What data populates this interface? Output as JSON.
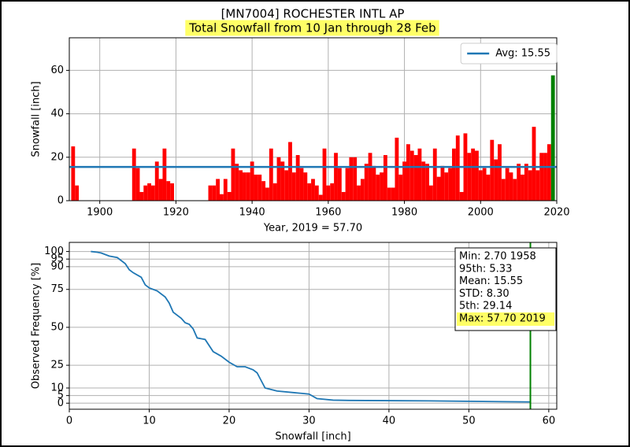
{
  "chart_data": [
    {
      "type": "bar",
      "title": "[MN7004] ROCHESTER INTL AP",
      "subtitle": "Total Snowfall from 10 Jan through 28 Feb",
      "subtitle_background": "#ffff66",
      "xlabel": "Year, 2019 = 57.70",
      "ylabel": "Snowfall [inch]",
      "xlim": [
        1892,
        2020
      ],
      "ylim": [
        0,
        75
      ],
      "xticks": [
        1900,
        1920,
        1940,
        1960,
        1980,
        2000,
        2020
      ],
      "yticks": [
        0,
        20,
        40,
        60
      ],
      "grid": true,
      "legend": "upper right",
      "series": [
        {
          "color": "red",
          "x": [
            1893,
            1894,
            1909,
            1910,
            1911,
            1912,
            1913,
            1914,
            1915,
            1916,
            1917,
            1918,
            1919,
            1929,
            1930,
            1931,
            1932,
            1933,
            1934,
            1935,
            1936,
            1937,
            1938,
            1939,
            1940,
            1941,
            1942,
            1943,
            1944,
            1945,
            1946,
            1947,
            1948,
            1949,
            1950,
            1951,
            1952,
            1953,
            1954,
            1955,
            1956,
            1957,
            1958,
            1959,
            1960,
            1961,
            1962,
            1963,
            1964,
            1965,
            1966,
            1967,
            1968,
            1969,
            1970,
            1971,
            1972,
            1973,
            1974,
            1975,
            1976,
            1977,
            1978,
            1979,
            1980,
            1981,
            1982,
            1983,
            1984,
            1985,
            1986,
            1987,
            1988,
            1989,
            1990,
            1991,
            1992,
            1993,
            1994,
            1995,
            1996,
            1997,
            1998,
            1999,
            2000,
            2001,
            2002,
            2003,
            2004,
            2005,
            2006,
            2007,
            2008,
            2009,
            2010,
            2011,
            2012,
            2013,
            2014,
            2015,
            2016,
            2017,
            2018
          ],
          "values": [
            25,
            7,
            24,
            15,
            4,
            7,
            8,
            7,
            18,
            10,
            24,
            9,
            8,
            7,
            7,
            10,
            3,
            10,
            4,
            24,
            17,
            14,
            13,
            13,
            18,
            12,
            12,
            9,
            6,
            24,
            8,
            20,
            18,
            14,
            27,
            13,
            21,
            15,
            13,
            8,
            10,
            7,
            2.7,
            24,
            7,
            8,
            22,
            15,
            4,
            15,
            20,
            20,
            7,
            10,
            17,
            22,
            16,
            12,
            13,
            21,
            6,
            6,
            29,
            12,
            18,
            26,
            23,
            21,
            24,
            18,
            17,
            7,
            24,
            11,
            16,
            13,
            15,
            24,
            30,
            4,
            31,
            22,
            24,
            23,
            14,
            15,
            12,
            28,
            19,
            26,
            10,
            15,
            13,
            10,
            17,
            12,
            17,
            14,
            34,
            14,
            22,
            22,
            26
          ]
        },
        {
          "color": "green",
          "x": [
            2019
          ],
          "values": [
            57.7
          ]
        }
      ],
      "avg": {
        "name": "Avg: 15.55",
        "value": 15.55,
        "color": "#1f77b4"
      }
    },
    {
      "type": "line",
      "xlabel": "Snowfall [inch]",
      "ylabel": "Observed Frequency [%]",
      "xlim": [
        0,
        61
      ],
      "ylim": [
        -4,
        106
      ],
      "xticks": [
        0,
        10,
        20,
        30,
        40,
        50,
        60
      ],
      "yticks": [
        0,
        5,
        10,
        25,
        50,
        75,
        90,
        95,
        100
      ],
      "grid": true,
      "series": [
        {
          "color": "#1f77b4",
          "x": [
            2.7,
            3.5,
            4,
            5,
            6,
            6.5,
            7,
            7.5,
            8,
            9,
            9.5,
            10,
            11,
            12,
            12.5,
            13,
            14,
            14.5,
            15,
            15.5,
            16,
            17,
            18,
            19,
            20,
            21,
            22,
            23,
            23.5,
            24,
            24.5,
            26,
            28,
            30,
            31,
            33,
            35,
            45,
            57.7
          ],
          "values": [
            100,
            99.5,
            99,
            97,
            96,
            94,
            92,
            88,
            86,
            83,
            78,
            76,
            74,
            70,
            66,
            60,
            56,
            53,
            52,
            49,
            43,
            42,
            34,
            31,
            27,
            24,
            24,
            22,
            20,
            15,
            10,
            8,
            7,
            6,
            3,
            2,
            1.8,
            1.5,
            0.8
          ]
        }
      ],
      "marker_x": 57.7,
      "marker_color": "green",
      "stats": [
        "Min: 2.70 1958",
        "95th: 5.33",
        "Mean: 15.55",
        "STD: 8.30",
        "5th: 29.14",
        "Max: 57.70 2019"
      ],
      "stats_highlight": "#ffff66"
    }
  ]
}
